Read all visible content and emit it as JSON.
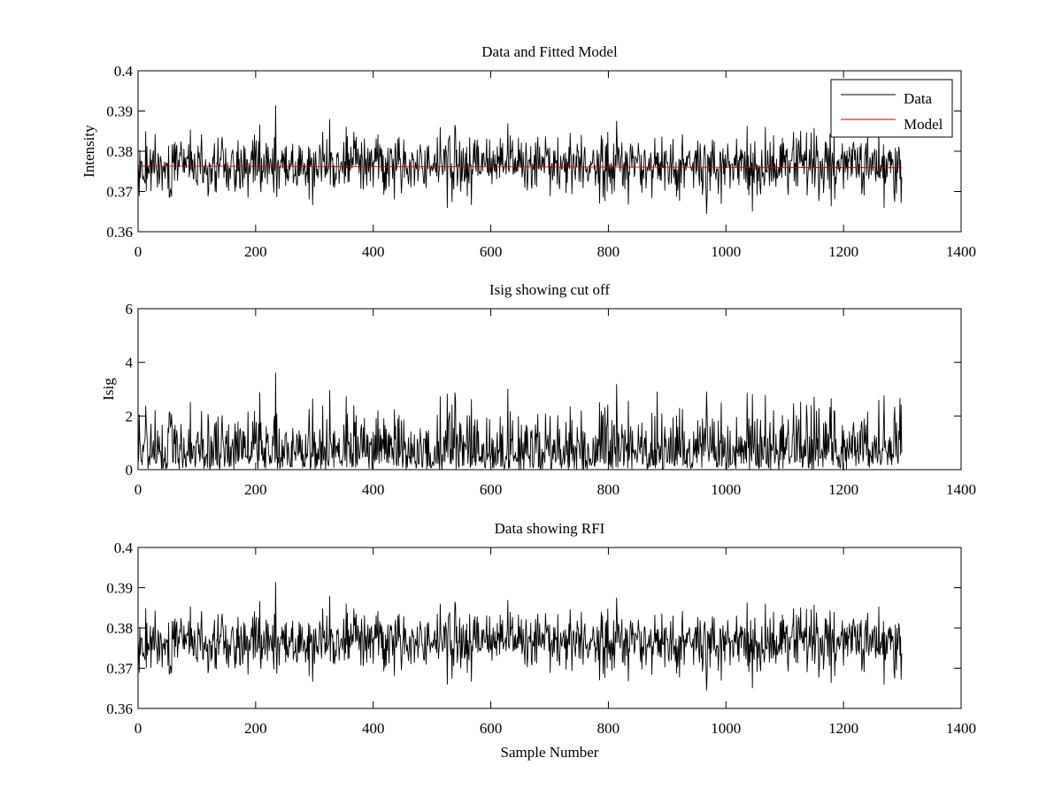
{
  "figure": {
    "background": "#ffffff",
    "data_color": "#000000",
    "model_color": "#cc0000"
  },
  "chart_data": [
    {
      "type": "line",
      "title": "Data and Fitted Model",
      "xlabel": "",
      "ylabel": "Intensity",
      "xlim": [
        0,
        1400
      ],
      "ylim": [
        0.36,
        0.4
      ],
      "xticks": [
        0,
        200,
        400,
        600,
        800,
        1000,
        1200,
        1400
      ],
      "xtick_labels": [
        "0",
        "200",
        "400",
        "600",
        "800",
        "1000",
        "1200",
        "1400"
      ],
      "yticks": [
        0.36,
        0.37,
        0.38,
        0.39,
        0.4
      ],
      "ytick_labels": [
        "0.36",
        "0.37",
        "0.38",
        "0.39",
        "0.4"
      ],
      "grid": false,
      "legend": {
        "position": "top-right",
        "entries": [
          "Data",
          "Model"
        ]
      },
      "series": [
        {
          "name": "Data",
          "color": "#000000",
          "n_points": 1300,
          "mean": 0.3765,
          "min": 0.3645,
          "max": 0.3913,
          "features": [
            {
              "x": 234,
              "y": 0.3913
            },
            {
              "x": 326,
              "y": 0.3879
            },
            {
              "x": 967,
              "y": 0.3645
            },
            {
              "x": 1045,
              "y": 0.3651
            },
            {
              "x": 1150,
              "y": 0.3857
            }
          ]
        },
        {
          "name": "Model",
          "color": "#cc0000",
          "x": [
            0,
            1300
          ],
          "y": [
            0.3763,
            0.3759
          ]
        }
      ]
    },
    {
      "type": "line",
      "title": "Isig showing cut off",
      "xlabel": "",
      "ylabel": "Isig",
      "xlim": [
        0,
        1400
      ],
      "ylim": [
        0,
        6
      ],
      "xticks": [
        0,
        200,
        400,
        600,
        800,
        1000,
        1200,
        1400
      ],
      "xtick_labels": [
        "0",
        "200",
        "400",
        "600",
        "800",
        "1000",
        "1200",
        "1400"
      ],
      "yticks": [
        0,
        2,
        4,
        6
      ],
      "ytick_labels": [
        "0",
        "2",
        "4",
        "6"
      ],
      "grid": false,
      "series": [
        {
          "color": "#000000",
          "n_points": 1300,
          "mean": 0.8,
          "min": 0,
          "max": 3.6,
          "features": [
            {
              "x": 234,
              "y": 3.6
            },
            {
              "x": 326,
              "y": 2.95
            },
            {
              "x": 883,
              "y": 2.9
            },
            {
              "x": 967,
              "y": 2.9
            },
            {
              "x": 1045,
              "y": 2.8
            },
            {
              "x": 1296,
              "y": 2.65
            }
          ]
        }
      ]
    },
    {
      "type": "line",
      "title": "Data showing RFI",
      "xlabel": "Sample Number",
      "ylabel": "",
      "xlim": [
        0,
        1400
      ],
      "ylim": [
        0.36,
        0.4
      ],
      "xticks": [
        0,
        200,
        400,
        600,
        800,
        1000,
        1200,
        1400
      ],
      "xtick_labels": [
        "0",
        "200",
        "400",
        "600",
        "800",
        "1000",
        "1200",
        "1400"
      ],
      "yticks": [
        0.36,
        0.37,
        0.38,
        0.39,
        0.4
      ],
      "ytick_labels": [
        "0.36",
        "0.37",
        "0.38",
        "0.39",
        "0.4"
      ],
      "grid": false,
      "series": [
        {
          "color": "#000000",
          "n_points": 1300,
          "mean": 0.3765,
          "min": 0.3645,
          "max": 0.3913,
          "features": [
            {
              "x": 234,
              "y": 0.3913
            },
            {
              "x": 326,
              "y": 0.3879
            },
            {
              "x": 967,
              "y": 0.3645
            },
            {
              "x": 1045,
              "y": 0.3651
            },
            {
              "x": 1150,
              "y": 0.3857
            }
          ]
        }
      ]
    }
  ]
}
